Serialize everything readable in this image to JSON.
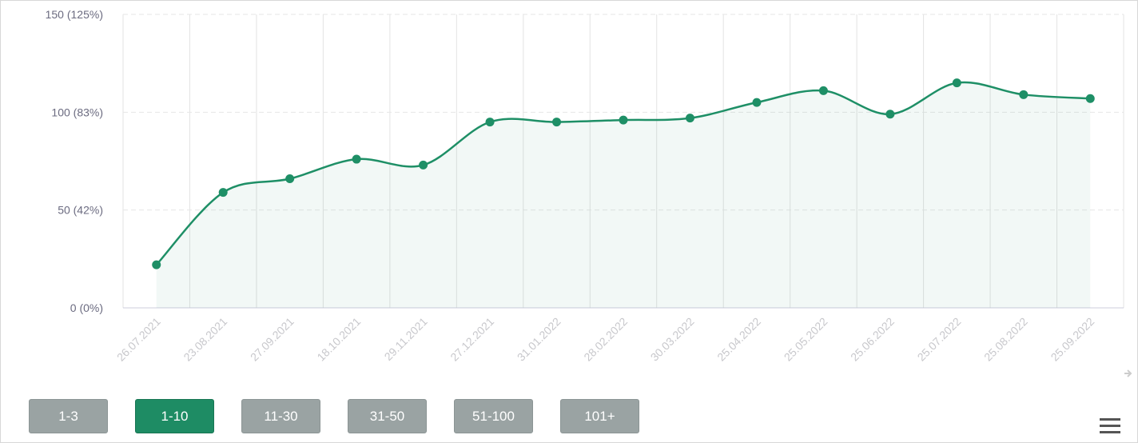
{
  "chart_data": {
    "type": "line",
    "categories": [
      "26.07.2021",
      "23.08.2021",
      "27.09.2021",
      "18.10.2021",
      "29.11.2021",
      "27.12.2021",
      "31.01.2022",
      "28.02.2022",
      "30.03.2022",
      "25.04.2022",
      "25.05.2022",
      "25.06.2022",
      "25.07.2022",
      "25.08.2022",
      "25.09.2022"
    ],
    "values": [
      22,
      59,
      66,
      76,
      73,
      95,
      95,
      96,
      97,
      105,
      111,
      99,
      115,
      109,
      107
    ],
    "color": "#1e8f66",
    "ylim": [
      0,
      150
    ],
    "yticks": [
      {
        "value": 0,
        "label": "0 (0%)"
      },
      {
        "value": 50,
        "label": "50 (42%)"
      },
      {
        "value": 100,
        "label": "100 (83%)"
      },
      {
        "value": 150,
        "label": "150 (125%)"
      }
    ],
    "grid": true
  },
  "buttons": [
    "1-3",
    "1-10",
    "11-30",
    "31-50",
    "51-100",
    "101+"
  ],
  "active_button": 1
}
